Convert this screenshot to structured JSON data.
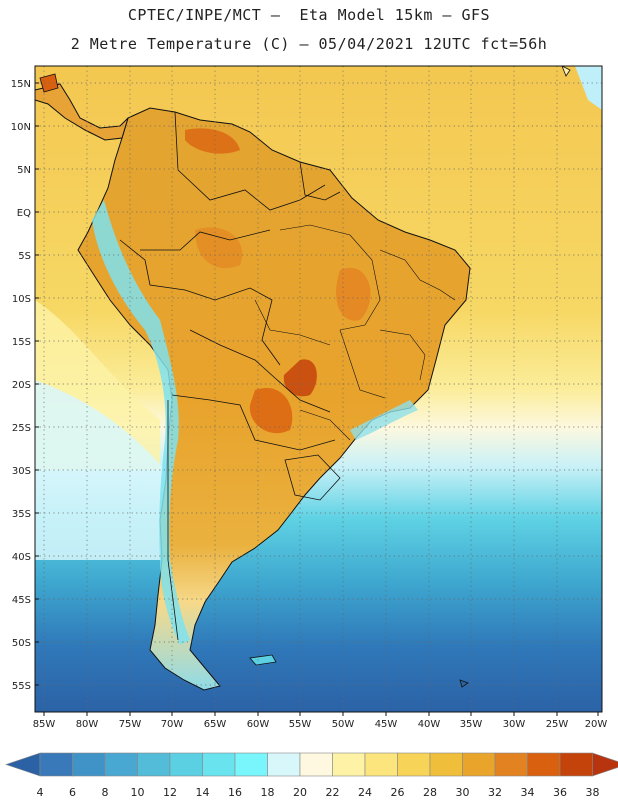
{
  "header": {
    "line1": "CPTEC/INPE/MCT –  Eta Model 15km – GFS",
    "line2": "2 Metre Temperature (C) – 05/04/2021 12UTC fct=56h"
  },
  "axes": {
    "lat_labels": [
      "15N",
      "10N",
      "5N",
      "EQ",
      "5S",
      "10S",
      "15S",
      "20S",
      "25S",
      "30S",
      "35S",
      "40S",
      "45S",
      "50S",
      "55S"
    ],
    "lon_labels": [
      "85W",
      "80W",
      "75W",
      "70W",
      "65W",
      "60W",
      "55W",
      "50W",
      "45W",
      "40W",
      "35W",
      "30W",
      "25W",
      "20W"
    ]
  },
  "colorbar": {
    "labels": [
      "4",
      "6",
      "8",
      "10",
      "12",
      "14",
      "16",
      "18",
      "20",
      "22",
      "24",
      "26",
      "28",
      "30",
      "32",
      "34",
      "36",
      "38"
    ],
    "colors": [
      "#2b62a6",
      "#3978b9",
      "#3f93c6",
      "#49a8d1",
      "#52bcd9",
      "#5bd0e3",
      "#69e4ef",
      "#78f6fb",
      "#d8f7fb",
      "#fdf8df",
      "#fdf2a6",
      "#fbe57c",
      "#f7d357",
      "#efbe3a",
      "#e9a52b",
      "#e38220",
      "#d9600f",
      "#c4430a",
      "#b7340e"
    ]
  }
}
